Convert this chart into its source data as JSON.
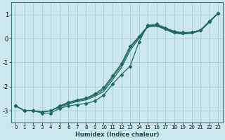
{
  "xlabel": "Humidex (Indice chaleur)",
  "ylabel": "",
  "bg_color": "#cce8ee",
  "grid_color": "#aacccc",
  "line_color": "#1a6b5a",
  "xlim": [
    -0.5,
    23.5
  ],
  "ylim": [
    -3.5,
    1.5
  ],
  "yticks": [
    -3,
    -2,
    -1,
    0,
    1
  ],
  "xticks": [
    0,
    1,
    2,
    3,
    4,
    5,
    6,
    7,
    8,
    9,
    10,
    11,
    12,
    13,
    14,
    15,
    16,
    17,
    18,
    19,
    20,
    21,
    22,
    23
  ],
  "lines": [
    {
      "x": [
        0,
        1,
        2,
        3,
        4,
        5,
        6,
        7,
        8,
        9,
        10,
        11,
        12,
        13,
        14,
        15,
        16,
        17,
        18,
        19,
        20,
        21,
        22,
        23
      ],
      "y": [
        -2.8,
        -3.0,
        -3.0,
        -3.1,
        -3.1,
        -2.9,
        -2.8,
        -2.75,
        -2.7,
        -2.6,
        -2.35,
        -1.9,
        -1.5,
        -1.15,
        -0.15,
        0.55,
        0.6,
        0.45,
        0.3,
        0.25,
        0.25,
        0.35,
        0.7,
        1.05
      ],
      "marker": "D",
      "markersize": 2.5,
      "lw": 0.9
    },
    {
      "x": [
        0,
        1,
        2,
        3,
        4,
        5,
        6,
        7,
        8,
        9,
        10,
        11,
        12,
        13,
        14,
        15,
        16,
        17,
        18,
        19,
        20,
        21,
        22,
        23
      ],
      "y": [
        -2.8,
        -3.0,
        -3.0,
        -3.05,
        -3.0,
        -2.85,
        -2.72,
        -2.62,
        -2.55,
        -2.4,
        -2.2,
        -1.72,
        -1.22,
        -0.5,
        0.0,
        0.48,
        0.52,
        0.38,
        0.22,
        0.18,
        0.22,
        0.32,
        0.68,
        1.05
      ],
      "marker": null,
      "markersize": 0,
      "lw": 0.9
    },
    {
      "x": [
        0,
        1,
        2,
        3,
        4,
        5,
        6,
        7,
        8,
        9,
        10,
        11,
        12,
        13,
        14,
        15,
        16,
        17,
        18,
        19,
        20,
        21,
        22,
        23
      ],
      "y": [
        -2.8,
        -3.0,
        -3.0,
        -3.05,
        -3.0,
        -2.82,
        -2.68,
        -2.58,
        -2.5,
        -2.35,
        -2.12,
        -1.62,
        -1.12,
        -0.4,
        0.05,
        0.5,
        0.53,
        0.4,
        0.25,
        0.2,
        0.25,
        0.33,
        0.7,
        1.05
      ],
      "marker": null,
      "markersize": 0,
      "lw": 0.9
    },
    {
      "x": [
        0,
        1,
        2,
        3,
        4,
        5,
        6,
        7,
        8,
        9,
        10,
        11,
        12,
        13,
        14,
        15,
        16,
        17,
        18,
        19,
        20,
        21,
        22,
        23
      ],
      "y": [
        -2.8,
        -3.0,
        -3.0,
        -3.05,
        -3.0,
        -2.8,
        -2.65,
        -2.55,
        -2.48,
        -2.3,
        -2.05,
        -1.55,
        -1.05,
        -0.32,
        0.08,
        0.52,
        0.55,
        0.42,
        0.27,
        0.22,
        0.27,
        0.35,
        0.72,
        1.05
      ],
      "marker": "D",
      "markersize": 2.5,
      "lw": 0.9
    }
  ]
}
